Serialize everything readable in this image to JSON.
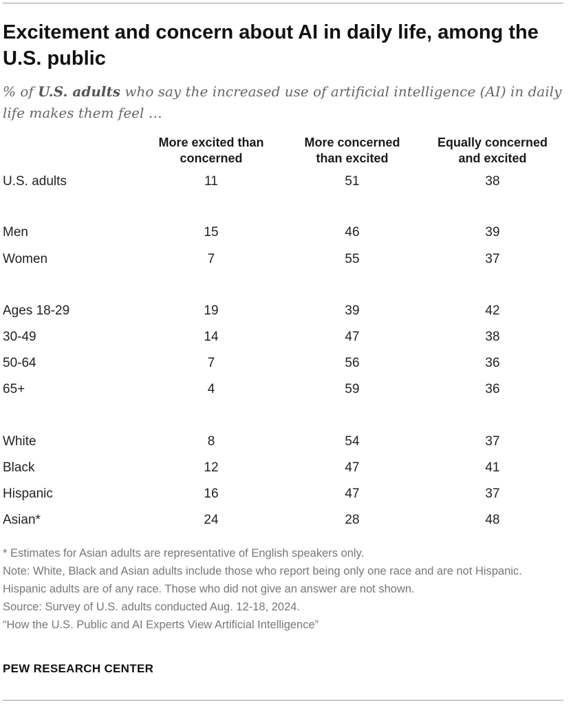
{
  "header": {
    "title": "Excitement and concern about AI in daily life, among the U.S. public",
    "subtitle_prefix": "% of ",
    "subtitle_bold": "U.S. adults",
    "subtitle_rest": " who say the increased use of artificial intelligence (AI) in daily life makes them feel …"
  },
  "columns": [
    {
      "line1": "More excited than",
      "line2": "concerned"
    },
    {
      "line1": "More concerned",
      "line2": "than excited"
    },
    {
      "line1": "Equally concerned",
      "line2": "and excited"
    }
  ],
  "chart_data": {
    "type": "table",
    "title": "Excitement and concern about AI in daily life, among the U.S. public",
    "columns": [
      "More excited than concerned",
      "More concerned than excited",
      "Equally concerned and excited"
    ],
    "rows": [
      {
        "label": "U.S. adults",
        "values": [
          11,
          51,
          38
        ]
      },
      {
        "label": "Men",
        "values": [
          15,
          46,
          39
        ]
      },
      {
        "label": "Women",
        "values": [
          7,
          55,
          37
        ]
      },
      {
        "label": "Ages 18-29",
        "values": [
          19,
          39,
          42
        ]
      },
      {
        "label": "30-49",
        "values": [
          14,
          47,
          38
        ]
      },
      {
        "label": "50-64",
        "values": [
          7,
          56,
          36
        ]
      },
      {
        "label": "65+",
        "values": [
          4,
          59,
          36
        ]
      },
      {
        "label": "White",
        "values": [
          8,
          54,
          37
        ]
      },
      {
        "label": "Black",
        "values": [
          12,
          47,
          41
        ]
      },
      {
        "label": "Hispanic",
        "values": [
          16,
          47,
          37
        ]
      },
      {
        "label": "Asian*",
        "values": [
          24,
          28,
          48
        ]
      }
    ]
  },
  "footer": {
    "asterisk_note": "* Estimates for Asian adults are representative of English speakers only.",
    "note": "Note: White, Black and Asian adults include those who report being only one race and are not Hispanic. Hispanic adults are of any race. Those who did not give an answer are not shown.",
    "source": "Source: Survey of U.S. adults conducted Aug. 12-18, 2024.",
    "report": "“How the U.S. Public and AI Experts View Artificial Intelligence”",
    "brand": "PEW RESEARCH CENTER"
  }
}
